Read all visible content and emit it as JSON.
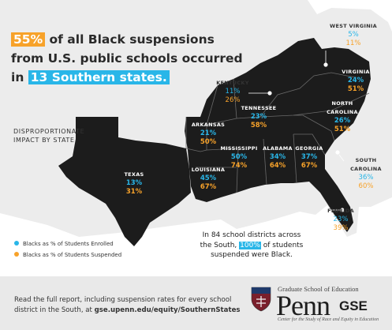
{
  "headline": {
    "percent": "55%",
    "text1": " of all Black suspensions",
    "text2": "from U.S. public schools occurred",
    "text3": "in ",
    "states": "13 Southern states."
  },
  "impact_label": "DISPROPORTIONATE IMPACT BY STATE",
  "colors": {
    "enrolled": "#29b6e8",
    "suspended": "#f7a22a",
    "map_fill": "#1c1c1c"
  },
  "states": [
    {
      "name": "WEST VIRGINIA",
      "enrolled": "5%",
      "suspended": "11%"
    },
    {
      "name": "VIRGINIA",
      "enrolled": "24%",
      "suspended": "51%"
    },
    {
      "name": "KENTUCKY",
      "enrolled": "11%",
      "suspended": "26%"
    },
    {
      "name": "TENNESSEE",
      "enrolled": "23%",
      "suspended": "58%"
    },
    {
      "name": "NORTH CAROLINA",
      "enrolled": "26%",
      "suspended": "51%"
    },
    {
      "name": "ARKANSAS",
      "enrolled": "21%",
      "suspended": "50%"
    },
    {
      "name": "MISSISSIPPI",
      "enrolled": "50%",
      "suspended": "74%"
    },
    {
      "name": "ALABAMA",
      "enrolled": "34%",
      "suspended": "64%"
    },
    {
      "name": "GEORGIA",
      "enrolled": "37%",
      "suspended": "67%"
    },
    {
      "name": "SOUTH CAROLINA",
      "enrolled": "36%",
      "suspended": "60%"
    },
    {
      "name": "LOUISIANA",
      "enrolled": "45%",
      "suspended": "67%"
    },
    {
      "name": "TEXAS",
      "enrolled": "13%",
      "suspended": "31%"
    },
    {
      "name": "FLORIDA",
      "enrolled": "23%",
      "suspended": "39%"
    }
  ],
  "legend": {
    "enrolled": "Blacks as % of Students Enrolled",
    "suspended": "Blacks as % of Students Suspended"
  },
  "callout": {
    "part1": "In 84 school districts across",
    "part2": "the South, ",
    "pct": "100%",
    "part3": " of students",
    "part4": "suspended were Black."
  },
  "footer": {
    "line1": "Read the full report, including suspension rates for every school",
    "line2": "district in the South, at ",
    "url": "gse.upenn.edu/equity/SouthernStates"
  },
  "logo": {
    "top": "Graduate School of Education",
    "penn": "Penn",
    "gse": "GSE",
    "sub": "Center for the Study of Race and Equity in Education"
  }
}
